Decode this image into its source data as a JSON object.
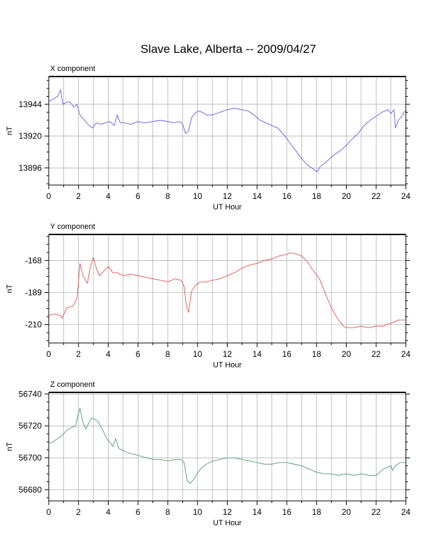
{
  "chart_data": {
    "title": "Slave Lake, Alberta -- 2009/04/27",
    "type": "line",
    "grid": true,
    "panels": [
      {
        "title": "X component",
        "xlabel": "UT Hour",
        "ylabel": "nT",
        "xlim": [
          0,
          24
        ],
        "xticks": [
          0,
          2,
          4,
          6,
          8,
          10,
          12,
          14,
          16,
          18,
          20,
          22,
          24
        ],
        "ylim": [
          13883,
          13965
        ],
        "yticks": [
          13896,
          13920,
          13944
        ],
        "color": "#4a4ae6",
        "series": [
          {
            "x": [
              0,
              0.3,
              0.6,
              0.8,
              0.95,
              1.1,
              1.4,
              1.7,
              1.9,
              2.1,
              2.4,
              2.7,
              2.95,
              3.2,
              3.5,
              3.8,
              4.1,
              4.4,
              4.6,
              4.8,
              5.1,
              5.5,
              6.0,
              6.4,
              7.0,
              7.5,
              8.0,
              8.4,
              8.8,
              9.0,
              9.2,
              9.4,
              9.6,
              9.9,
              10.1,
              10.3,
              10.6,
              11.0,
              11.5,
              12.0,
              12.5,
              13.0,
              13.4,
              13.8,
              14.2,
              14.6,
              15.0,
              15.4,
              15.8,
              16.2,
              16.6,
              17.0,
              17.4,
              17.8,
              18.05,
              18.25,
              18.5,
              18.8,
              19.2,
              19.6,
              20.0,
              20.4,
              20.8,
              21.2,
              21.6,
              22.0,
              22.4,
              22.8,
              23.0,
              23.2,
              23.3,
              23.5,
              23.8,
              24.0
            ],
            "y": [
              13946,
              13948,
              13950,
              13955,
              13944,
              13945,
              13946,
              13942,
              13944,
              13936,
              13932,
              13928,
              13926,
              13930,
              13929,
              13930,
              13931,
              13928,
              13936,
              13930,
              13930,
              13929,
              13931,
              13930,
              13931,
              13932,
              13931,
              13930,
              13931,
              13929,
              13922,
              13924,
              13934,
              13938,
              13939,
              13938,
              13936,
              13936,
              13938,
              13940,
              13941,
              13940,
              13939,
              13936,
              13932,
              13930,
              13928,
              13926,
              13921,
              13915,
              13909,
              13903,
              13898,
              13895,
              13893,
              13897,
              13899,
              13902,
              13906,
              13909,
              13913,
              13918,
              13922,
              13928,
              13932,
              13935,
              13938,
              13940,
              13937,
              13940,
              13926,
              13932,
              13936,
              13940
            ]
          }
        ]
      },
      {
        "title": "Y component",
        "xlabel": "UT Hour",
        "ylabel": "nT",
        "xlim": [
          0,
          24
        ],
        "xticks": [
          0,
          2,
          4,
          6,
          8,
          10,
          12,
          14,
          16,
          18,
          20,
          22,
          24
        ],
        "ylim": [
          -222,
          -151
        ],
        "yticks": [
          -210,
          -189,
          -168
        ],
        "color": "#e63c3c",
        "series": [
          {
            "x": [
              0,
              0.4,
              0.8,
              0.9,
              1.2,
              1.6,
              1.9,
              2.0,
              2.1,
              2.3,
              2.6,
              2.8,
              3.0,
              3.1,
              3.2,
              3.4,
              3.7,
              4.0,
              4.3,
              4.6,
              5.0,
              5.5,
              6.0,
              6.5,
              7.0,
              7.5,
              8.0,
              8.5,
              8.9,
              9.1,
              9.25,
              9.4,
              9.6,
              9.9,
              10.2,
              10.6,
              11.0,
              11.5,
              12.0,
              12.5,
              13.0,
              13.5,
              14.0,
              14.5,
              15.0,
              15.5,
              16.0,
              16.3,
              16.7,
              17.0,
              17.4,
              17.8,
              18.2,
              18.6,
              19.0,
              19.4,
              19.8,
              20.0,
              20.5,
              21.0,
              21.5,
              22.0,
              22.5,
              23.0,
              23.5,
              24.0
            ],
            "y": [
              -204,
              -203,
              -204,
              -206,
              -199,
              -198,
              -193,
              -182,
              -170,
              -178,
              -183,
              -172,
              -166,
              -170,
              -173,
              -178,
              -175,
              -172,
              -176,
              -176,
              -178,
              -177,
              -178,
              -179,
              -180,
              -181,
              -182,
              -180,
              -181,
              -185,
              -198,
              -202,
              -188,
              -184,
              -182,
              -182,
              -181,
              -180,
              -178,
              -176,
              -173,
              -171,
              -170,
              -168,
              -167,
              -165,
              -164,
              -163,
              -164,
              -165,
              -169,
              -175,
              -180,
              -190,
              -199,
              -206,
              -211,
              -212,
              -212,
              -211,
              -212,
              -211,
              -211,
              -209,
              -207,
              -207
            ]
          }
        ]
      },
      {
        "title": "Z component",
        "xlabel": "UT Hour",
        "ylabel": "nT",
        "xlim": [
          0,
          24
        ],
        "xticks": [
          0,
          2,
          4,
          6,
          8,
          10,
          12,
          14,
          16,
          18,
          20,
          22,
          24
        ],
        "ylim": [
          56673,
          56741
        ],
        "yticks": [
          56680,
          56700,
          56720,
          56740
        ],
        "color": "#3a8f5a",
        "series": [
          {
            "x": [
              0,
              0.3,
              0.6,
              0.9,
              1.2,
              1.5,
              1.8,
              1.95,
              2.1,
              2.3,
              2.5,
              2.7,
              2.9,
              3.1,
              3.3,
              3.6,
              3.9,
              4.1,
              4.3,
              4.5,
              4.7,
              4.9,
              5.1,
              5.4,
              5.8,
              6.2,
              6.6,
              7.0,
              7.5,
              8.0,
              8.5,
              8.9,
              9.1,
              9.3,
              9.5,
              9.7,
              9.9,
              10.2,
              10.6,
              11.0,
              11.5,
              12.0,
              12.5,
              13.0,
              13.5,
              14.0,
              14.5,
              15.0,
              15.5,
              16.0,
              16.5,
              17.0,
              17.5,
              18.0,
              18.5,
              19.0,
              19.5,
              20.0,
              20.5,
              21.0,
              21.5,
              22.0,
              22.5,
              23.0,
              23.1,
              23.3,
              23.6,
              24.0
            ],
            "y": [
              56709,
              56710,
              56712,
              56714,
              56717,
              56719,
              56720,
              56726,
              56731,
              56722,
              56718,
              56722,
              56725,
              56724,
              56723,
              56718,
              56712,
              56710,
              56707,
              56712,
              56706,
              56705,
              56704,
              56703,
              56702,
              56701,
              56700,
              56699,
              56699,
              56698,
              56699,
              56699,
              56697,
              56686,
              56684,
              56686,
              56689,
              56693,
              56696,
              56698,
              56699,
              56700,
              56700,
              56699,
              56698,
              56697,
              56696,
              56696,
              56697,
              56697,
              56696,
              56695,
              56693,
              56691,
              56690,
              56690,
              56689,
              56690,
              56689,
              56690,
              56689,
              56689,
              56693,
              56695,
              56692,
              56695,
              56697,
              56697
            ]
          }
        ]
      }
    ]
  }
}
